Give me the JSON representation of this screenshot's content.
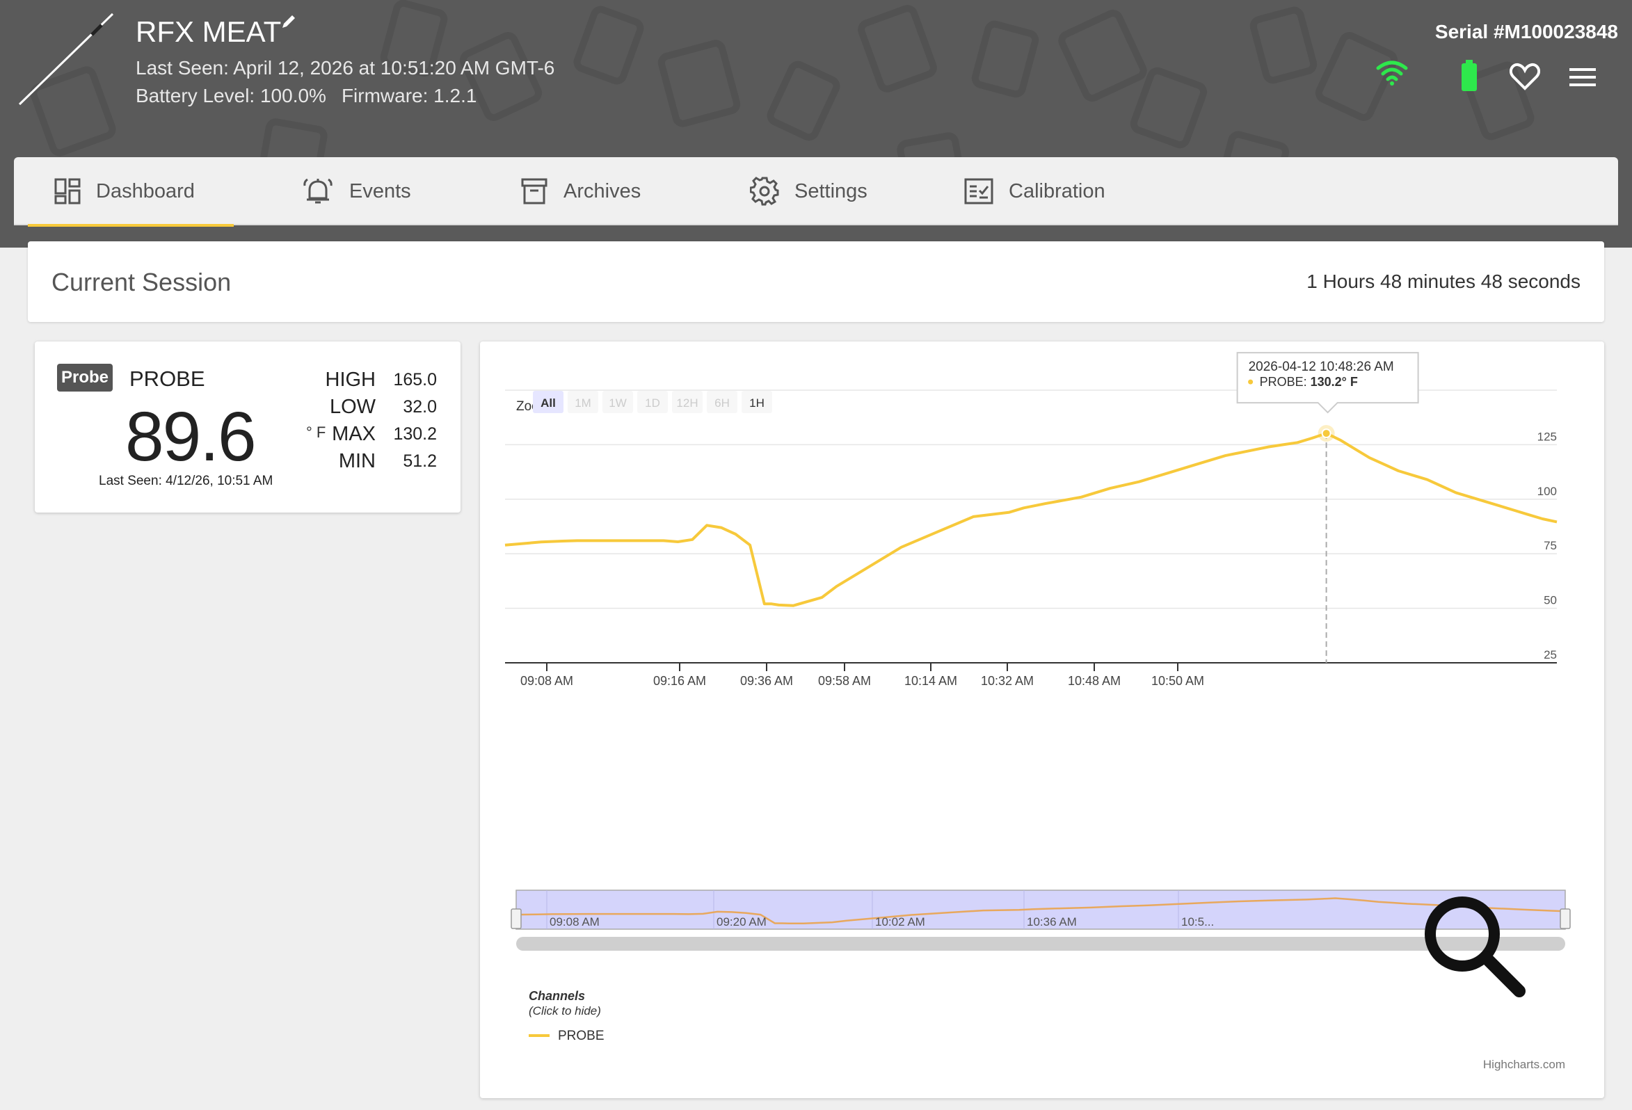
{
  "header": {
    "device_name": "RFX MEAT",
    "last_seen": "Last Seen: April 12, 2026 at 10:51:20 AM GMT-6",
    "battery": "Battery Level: 100.0%",
    "firmware": "Firmware: 1.2.1",
    "serial": "Serial #M100023848",
    "icons": [
      "wifi-icon",
      "battery-icon",
      "heart-icon",
      "menu-icon"
    ],
    "colors": {
      "wifi": "#2ee84c",
      "battery": "#2ee84c"
    }
  },
  "nav": {
    "tabs": [
      {
        "label": "Dashboard",
        "icon": "dashboard-icon",
        "active": true
      },
      {
        "label": "Events",
        "icon": "bell-icon"
      },
      {
        "label": "Archives",
        "icon": "archive-icon"
      },
      {
        "label": "Settings",
        "icon": "gear-icon"
      },
      {
        "label": "Calibration",
        "icon": "checklist-icon"
      }
    ]
  },
  "session": {
    "title": "Current Session",
    "duration": "1 Hours 48 minutes 48 seconds"
  },
  "probe": {
    "badge": "Probe",
    "name": "PROBE",
    "temperature": "89.6",
    "unit": "° F",
    "last_seen": "Last Seen: 4/12/26, 10:51 AM",
    "stats": [
      {
        "label": "HIGH",
        "value": "165.0"
      },
      {
        "label": "LOW",
        "value": "32.0"
      },
      {
        "label": "MAX",
        "value": "130.2"
      },
      {
        "label": "MIN",
        "value": "51.2"
      }
    ]
  },
  "chart_data": {
    "type": "line",
    "zoom_label": "Zoom",
    "zoom_buttons": [
      {
        "label": "All",
        "state": "selected"
      },
      {
        "label": "1M",
        "state": "disabled"
      },
      {
        "label": "1W",
        "state": "disabled"
      },
      {
        "label": "1D",
        "state": "disabled"
      },
      {
        "label": "12H",
        "state": "disabled"
      },
      {
        "label": "6H",
        "state": "disabled"
      },
      {
        "label": "1H",
        "state": "enabled"
      }
    ],
    "y_ticks": [
      "125",
      "100",
      "75",
      "50",
      "25"
    ],
    "ylim": [
      25,
      150
    ],
    "x_tick_labels": [
      "09:08 AM",
      "09:16 AM",
      "09:36 AM",
      "09:58 AM",
      "10:14 AM",
      "10:32 AM",
      "10:48 AM",
      "10:50 AM"
    ],
    "navigator_labels": [
      "09:08 AM",
      "09:20 AM",
      "10:02 AM",
      "10:36 AM",
      "10:5..."
    ],
    "series": [
      {
        "name": "PROBE",
        "color": "#f7c93b",
        "x": [
          0,
          3,
          5,
          8,
          10,
          14,
          22,
          24,
          26,
          28,
          30,
          32,
          34,
          36,
          37,
          38,
          40,
          44,
          46,
          50,
          55,
          60,
          65,
          70,
          72,
          75,
          80,
          84,
          88,
          92,
          96,
          100,
          103,
          106,
          108,
          110,
          112,
          114,
          116,
          118,
          120,
          122,
          124,
          126,
          128,
          130,
          132,
          134,
          136,
          138,
          140,
          142,
          144,
          146
        ],
        "values": [
          79,
          79.8,
          80.4,
          80.8,
          81,
          81,
          81,
          80.5,
          81.5,
          88,
          87,
          84,
          79,
          52,
          52,
          51.5,
          51.2,
          55,
          60,
          68,
          78,
          85,
          92,
          94,
          96,
          98,
          101,
          105,
          108,
          112,
          116,
          120,
          122,
          124,
          125,
          126,
          128,
          130.2,
          127,
          123,
          119,
          116,
          113,
          111,
          109,
          106,
          103,
          101,
          99,
          97,
          95,
          93,
          91,
          89.6
        ]
      }
    ],
    "tooltip": {
      "time": "2026-04-12 10:48:26 AM",
      "series": "PROBE:",
      "value": "130.2° F",
      "x": 114
    },
    "legend": {
      "title": "Channels",
      "subtitle": "(Click to hide)",
      "items": [
        "PROBE"
      ]
    },
    "credits": "Highcharts.com",
    "navigator_color": "#d4d4fb"
  }
}
